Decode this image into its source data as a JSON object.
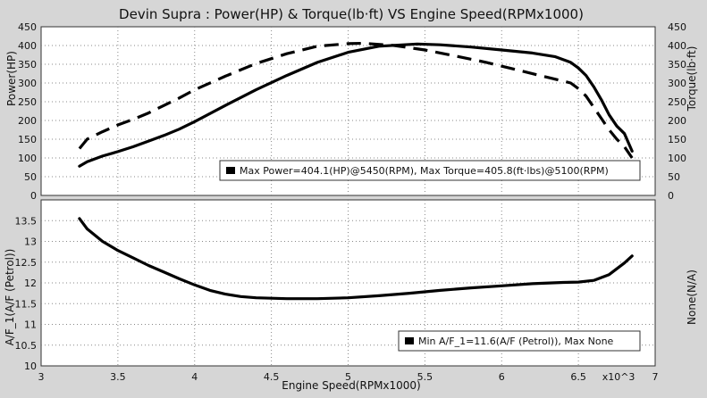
{
  "chart_data": [
    {
      "type": "line",
      "title": "Devin Supra : Power(HP) & Torque(lb·ft) VS Engine Speed(RPMx1000)",
      "ylabel": "Power(HP)",
      "y2label": "Torque(lb·ft)",
      "xlim": [
        3,
        7
      ],
      "ylim": [
        0,
        450
      ],
      "y2lim": [
        0,
        450
      ],
      "xticks": [
        "3",
        "3.5",
        "4",
        "4.5",
        "5",
        "5.5",
        "6",
        "6.5",
        "x10^3",
        "7"
      ],
      "yticks": [
        0,
        50,
        100,
        150,
        200,
        250,
        300,
        350,
        400,
        450
      ],
      "y2ticks": [
        0,
        50,
        100,
        150,
        200,
        250,
        300,
        350,
        400,
        450
      ],
      "grid": true,
      "legend": "Max Power=404.1(HP)@5450(RPM), Max Torque=405.8(ft·lbs)@5100(RPM)",
      "legend_position": "bottom-right",
      "series": [
        {
          "style": "solid",
          "x": [
            3.25,
            3.3,
            3.4,
            3.5,
            3.6,
            3.7,
            3.8,
            3.9,
            4.0,
            4.2,
            4.4,
            4.6,
            4.8,
            5.0,
            5.2,
            5.45,
            5.6,
            5.8,
            6.0,
            6.2,
            6.35,
            6.45,
            6.5,
            6.55,
            6.6,
            6.65,
            6.7,
            6.75,
            6.8,
            6.85
          ],
          "y": [
            78,
            90,
            105,
            117,
            130,
            145,
            160,
            177,
            197,
            240,
            282,
            320,
            355,
            382,
            398,
            404,
            402,
            396,
            388,
            380,
            370,
            355,
            340,
            320,
            290,
            255,
            215,
            185,
            165,
            118
          ]
        },
        {
          "style": "dashed",
          "x": [
            3.25,
            3.3,
            3.4,
            3.5,
            3.6,
            3.7,
            3.8,
            3.9,
            4.0,
            4.2,
            4.4,
            4.6,
            4.8,
            5.0,
            5.1,
            5.3,
            5.5,
            5.7,
            5.9,
            6.1,
            6.3,
            6.45,
            6.5,
            6.55,
            6.6,
            6.65,
            6.7,
            6.75,
            6.8,
            6.85
          ],
          "y": [
            125,
            150,
            170,
            188,
            203,
            220,
            240,
            260,
            282,
            318,
            352,
            378,
            398,
            405,
            406,
            400,
            388,
            372,
            355,
            335,
            315,
            300,
            285,
            265,
            235,
            205,
            175,
            150,
            130,
            100
          ]
        }
      ]
    },
    {
      "type": "line",
      "xlabel": "Engine Speed(RPMx1000)",
      "ylabel": "A/F_1(A/F (Petrol))",
      "y2label": "None(N/A)",
      "xlim": [
        3,
        7
      ],
      "ylim": [
        10,
        14
      ],
      "yticks": [
        "10",
        "10.5",
        "11",
        "11.5",
        "12",
        "12.5",
        "13",
        "13.5"
      ],
      "grid": true,
      "legend": "Min A/F_1=11.6(A/F (Petrol)), Max None",
      "legend_position": "bottom-right",
      "series": [
        {
          "style": "solid",
          "x": [
            3.25,
            3.3,
            3.4,
            3.5,
            3.6,
            3.7,
            3.8,
            3.9,
            4.0,
            4.1,
            4.2,
            4.3,
            4.4,
            4.6,
            4.8,
            5.0,
            5.2,
            5.4,
            5.6,
            5.8,
            6.0,
            6.2,
            6.4,
            6.5,
            6.6,
            6.7,
            6.8,
            6.85
          ],
          "y": [
            13.55,
            13.3,
            13.0,
            12.78,
            12.6,
            12.42,
            12.26,
            12.1,
            11.95,
            11.82,
            11.73,
            11.67,
            11.64,
            11.62,
            11.62,
            11.64,
            11.69,
            11.75,
            11.82,
            11.88,
            11.93,
            11.98,
            12.01,
            12.02,
            12.06,
            12.2,
            12.48,
            12.65
          ]
        }
      ]
    }
  ]
}
